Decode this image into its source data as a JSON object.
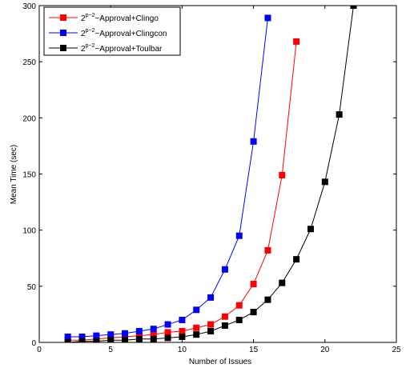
{
  "chart_data": {
    "type": "line",
    "title": "",
    "xlabel": "Number of Issues",
    "ylabel": "Mean Time (sec)",
    "xlim": [
      0,
      25
    ],
    "ylim": [
      0,
      300
    ],
    "x_ticks": [
      "0",
      "5",
      "10",
      "15",
      "20",
      "25"
    ],
    "y_ticks": [
      "0",
      "50",
      "100",
      "150",
      "200",
      "250",
      "300"
    ],
    "grid": false,
    "legend_position": "top-left",
    "series": [
      {
        "name_base": "2",
        "name_exp": "p−2",
        "name_rest": "−Approval+Clingo",
        "color": "#ff0000",
        "x": [
          2,
          3,
          4,
          5,
          6,
          7,
          8,
          9,
          10,
          11,
          12,
          13,
          14,
          15,
          16,
          17,
          18
        ],
        "y": [
          2,
          2,
          3,
          4,
          5,
          6,
          7,
          9,
          10,
          13,
          16,
          23,
          33,
          52,
          82,
          149,
          268
        ]
      },
      {
        "name_base": "2",
        "name_exp": "p−2",
        "name_rest": "−Approval+Clingcon",
        "color": "#0000ff",
        "x": [
          2,
          3,
          4,
          5,
          6,
          7,
          8,
          9,
          10,
          11,
          12,
          13,
          14,
          15,
          16
        ],
        "y": [
          5,
          5,
          6,
          7,
          8,
          10,
          12,
          16,
          20,
          29,
          40,
          65,
          95,
          179,
          289
        ]
      },
      {
        "name_base": "2",
        "name_exp": "p−2",
        "name_rest": "−Approval+Toulbar",
        "color": "#000000",
        "x": [
          2,
          3,
          4,
          5,
          6,
          7,
          8,
          9,
          10,
          11,
          12,
          13,
          14,
          15,
          16,
          17,
          18,
          19,
          20,
          21,
          22
        ],
        "y": [
          0,
          1,
          1,
          2,
          2,
          3,
          3,
          4,
          5,
          7,
          10,
          15,
          20,
          27,
          38,
          53,
          74,
          101,
          143,
          203,
          300
        ]
      }
    ]
  }
}
